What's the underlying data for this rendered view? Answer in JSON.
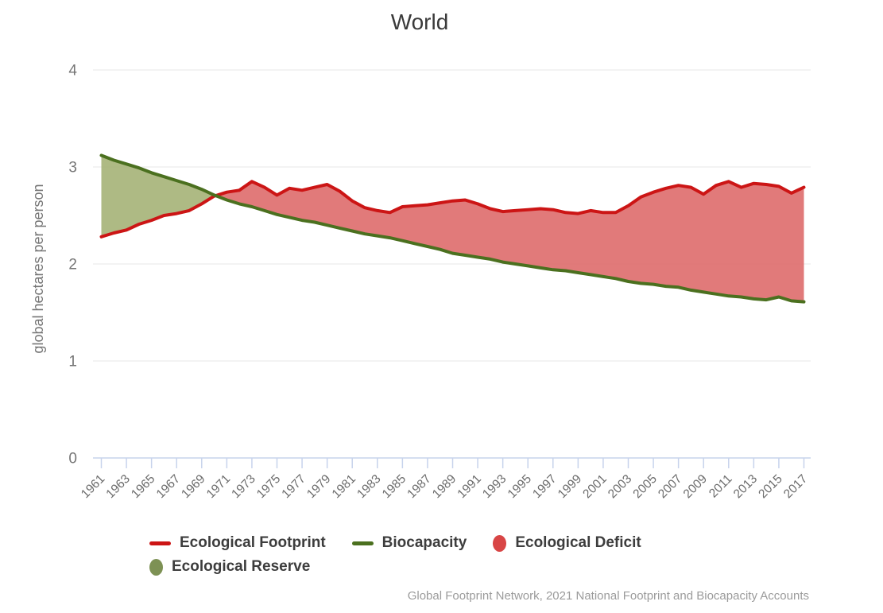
{
  "title": "World",
  "source": "Global Footprint Network, 2021 National Footprint and Biocapacity Accounts",
  "colors": {
    "footprint_line": "#cc1515",
    "biocapacity_line": "#4b701f",
    "deficit_fill": "#de6c6c",
    "reserve_fill": "#a5b377",
    "grid": "#e7e7e7",
    "axis": "#c7d3ec",
    "axis_text": "#757575",
    "tick_text": "#6b6b6b",
    "title_text": "#3a3a3a",
    "legend_text": "#3d3d3d",
    "source_text": "#9b9b9b"
  },
  "legend": {
    "items": [
      {
        "label": "Ecological Footprint",
        "marker": "line",
        "color": "#cc1515"
      },
      {
        "label": "Biocapacity",
        "marker": "line",
        "color": "#4b701f"
      },
      {
        "label": "Ecological Deficit",
        "marker": "ellipse",
        "color": "#d84545"
      },
      {
        "label": "Ecological Reserve",
        "marker": "ellipse",
        "color": "#7d9154"
      }
    ]
  },
  "chart_data": {
    "type": "area",
    "title": "World",
    "xlabel": "",
    "ylabel": "global hectares per person",
    "ylim": [
      0,
      4
    ],
    "y_ticks": [
      4,
      3,
      2,
      1,
      0
    ],
    "grid": "horizontal-only",
    "legend_position": "bottom-left",
    "x": [
      1961,
      1962,
      1963,
      1964,
      1965,
      1966,
      1967,
      1968,
      1969,
      1970,
      1971,
      1972,
      1973,
      1974,
      1975,
      1976,
      1977,
      1978,
      1979,
      1980,
      1981,
      1982,
      1983,
      1984,
      1985,
      1986,
      1987,
      1988,
      1989,
      1990,
      1991,
      1992,
      1993,
      1994,
      1995,
      1996,
      1997,
      1998,
      1999,
      2000,
      2001,
      2002,
      2003,
      2004,
      2005,
      2006,
      2007,
      2008,
      2009,
      2010,
      2011,
      2012,
      2013,
      2014,
      2015,
      2016,
      2017
    ],
    "x_tick_labels": [
      1961,
      1963,
      1965,
      1967,
      1969,
      1971,
      1973,
      1975,
      1977,
      1979,
      1981,
      1983,
      1985,
      1987,
      1989,
      1991,
      1993,
      1995,
      1997,
      1999,
      2001,
      2003,
      2005,
      2007,
      2009,
      2011,
      2013,
      2015,
      2017
    ],
    "series": [
      {
        "name": "Ecological Footprint",
        "color": "#cc1515",
        "values": [
          2.28,
          2.32,
          2.35,
          2.41,
          2.45,
          2.5,
          2.52,
          2.55,
          2.62,
          2.7,
          2.74,
          2.76,
          2.85,
          2.79,
          2.71,
          2.78,
          2.76,
          2.79,
          2.82,
          2.75,
          2.65,
          2.58,
          2.55,
          2.53,
          2.59,
          2.6,
          2.61,
          2.63,
          2.65,
          2.66,
          2.62,
          2.57,
          2.54,
          2.55,
          2.56,
          2.57,
          2.56,
          2.53,
          2.52,
          2.55,
          2.53,
          2.53,
          2.6,
          2.69,
          2.74,
          2.78,
          2.81,
          2.79,
          2.72,
          2.81,
          2.85,
          2.79,
          2.83,
          2.82,
          2.8,
          2.73,
          2.79
        ]
      },
      {
        "name": "Biocapacity",
        "color": "#4b701f",
        "values": [
          3.12,
          3.07,
          3.03,
          2.99,
          2.94,
          2.9,
          2.86,
          2.82,
          2.77,
          2.71,
          2.66,
          2.62,
          2.59,
          2.55,
          2.51,
          2.48,
          2.45,
          2.43,
          2.4,
          2.37,
          2.34,
          2.31,
          2.29,
          2.27,
          2.24,
          2.21,
          2.18,
          2.15,
          2.11,
          2.09,
          2.07,
          2.05,
          2.02,
          2.0,
          1.98,
          1.96,
          1.94,
          1.93,
          1.91,
          1.89,
          1.87,
          1.85,
          1.82,
          1.8,
          1.79,
          1.77,
          1.76,
          1.73,
          1.71,
          1.69,
          1.67,
          1.66,
          1.64,
          1.63,
          1.66,
          1.62,
          1.61
        ]
      }
    ],
    "areas": [
      {
        "name": "Ecological Deficit",
        "condition": "footprint > biocapacity",
        "color": "#de6c6c"
      },
      {
        "name": "Ecological Reserve",
        "condition": "biocapacity > footprint",
        "color": "#a5b377"
      }
    ]
  }
}
